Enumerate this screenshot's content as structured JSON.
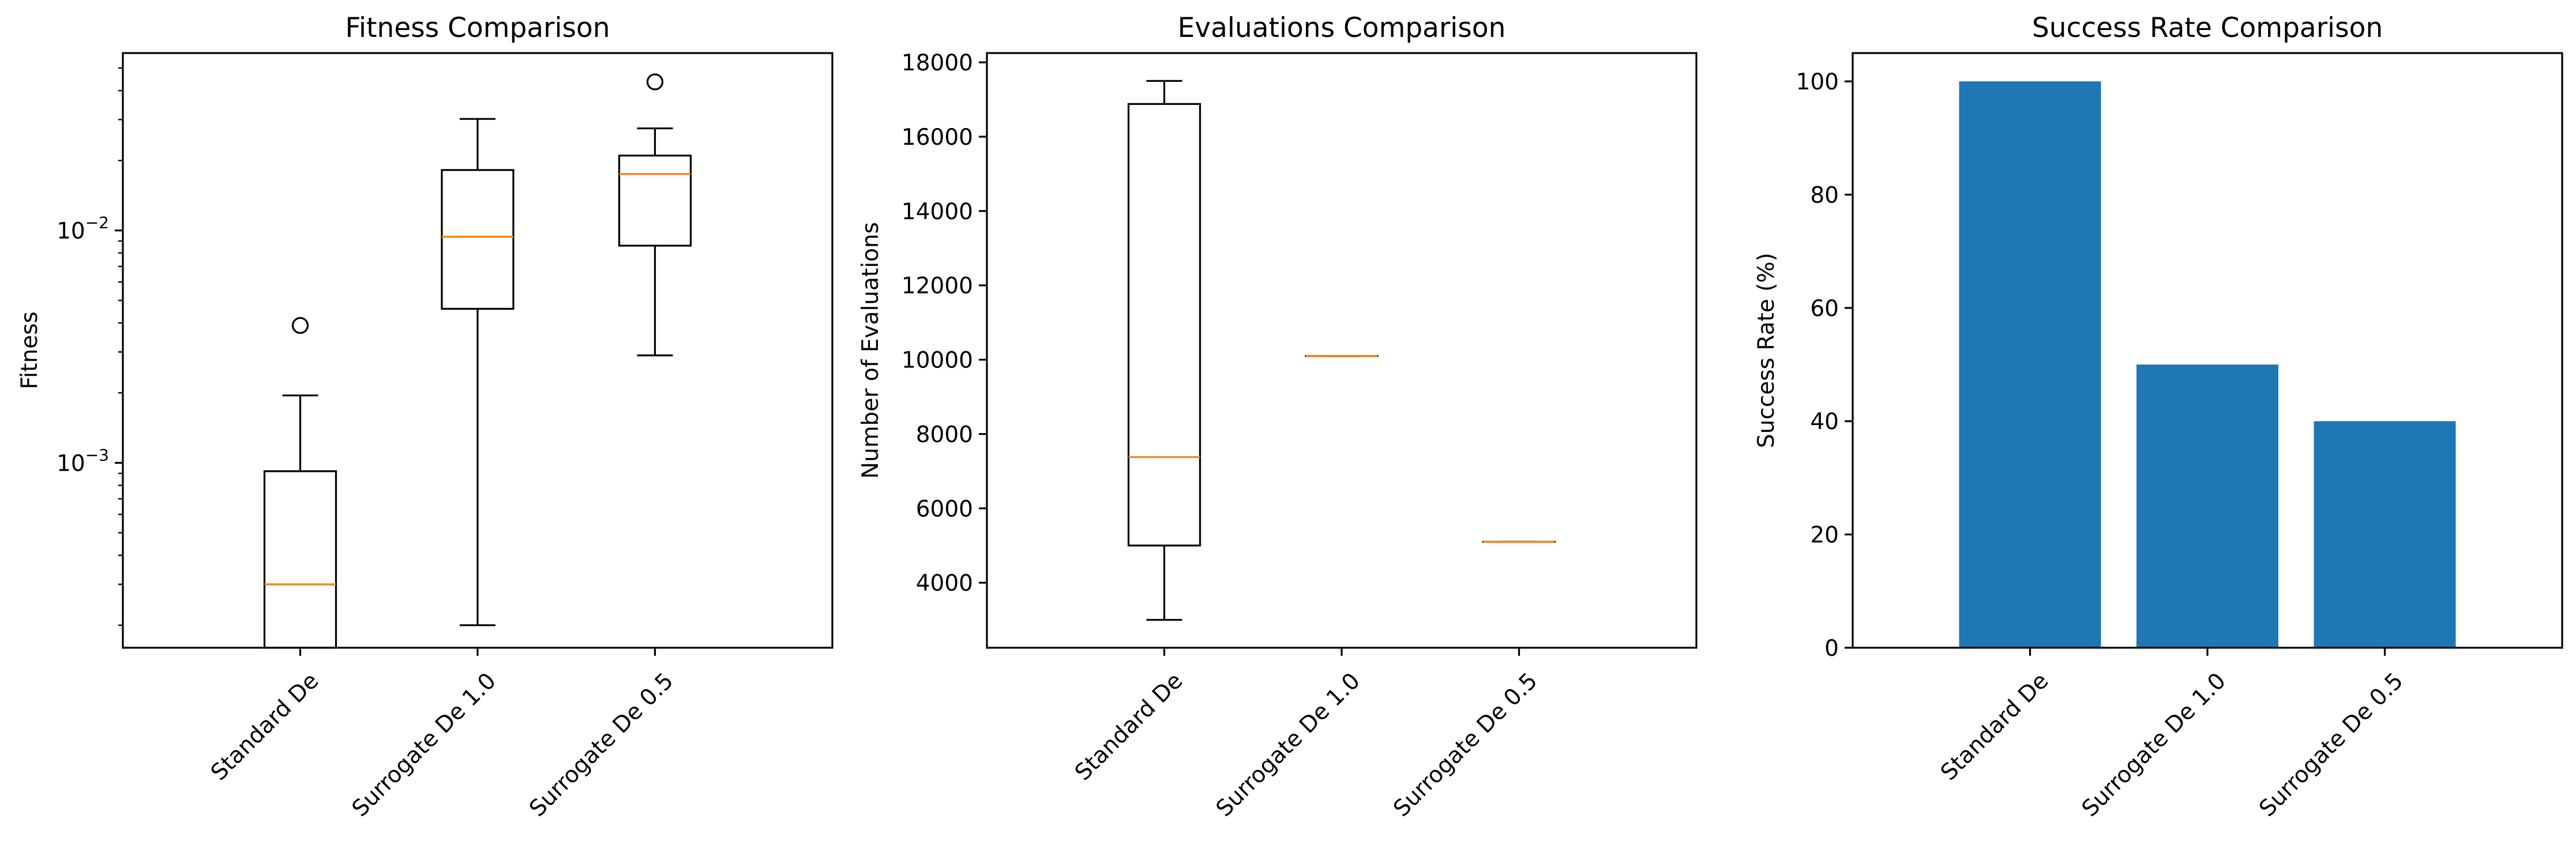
{
  "chart_data": [
    {
      "type": "box",
      "title": "Fitness Comparison",
      "xlabel": "",
      "ylabel": "Fitness",
      "yscale": "log",
      "ylim": [
        0.00016,
        0.058
      ],
      "yticks": [
        {
          "value": 0.001,
          "base": "10",
          "exp": "−3"
        },
        {
          "value": 0.01,
          "base": "10",
          "exp": "−2"
        }
      ],
      "categories": [
        "Standard De",
        "Surrogate De 1.0",
        "Surrogate De 0.5"
      ],
      "boxes": [
        {
          "whisker_low": 0.00012,
          "q1": 0.00012,
          "median": 0.0003,
          "q3": 0.00092,
          "whisker_high": 0.00195,
          "outliers": [
            0.0039
          ]
        },
        {
          "whisker_low": 0.0002,
          "q1": 0.0046,
          "median": 0.0094,
          "q3": 0.0182,
          "whisker_high": 0.0302,
          "outliers": []
        },
        {
          "whisker_low": 0.0029,
          "q1": 0.0086,
          "median": 0.0175,
          "q3": 0.021,
          "whisker_high": 0.0275,
          "outliers": [
            0.0436
          ]
        }
      ],
      "colors": {
        "box": "#000000",
        "median": "#ff7f0e"
      }
    },
    {
      "type": "box",
      "title": "Evaluations Comparison",
      "xlabel": "",
      "ylabel": "Number of Evaluations",
      "yscale": "linear",
      "ylim": [
        2250,
        18250
      ],
      "yticks": [
        4000,
        6000,
        8000,
        10000,
        12000,
        14000,
        16000,
        18000
      ],
      "categories": [
        "Standard De",
        "Surrogate De 1.0",
        "Surrogate De 0.5"
      ],
      "boxes": [
        {
          "whisker_low": 3000,
          "q1": 5000,
          "median": 7380,
          "q3": 16880,
          "whisker_high": 17500,
          "outliers": []
        },
        {
          "whisker_low": 10100,
          "q1": 10100,
          "median": 10100,
          "q3": 10100,
          "whisker_high": 10100,
          "outliers": []
        },
        {
          "whisker_low": 5100,
          "q1": 5100,
          "median": 5100,
          "q3": 5100,
          "whisker_high": 5100,
          "outliers": []
        }
      ],
      "colors": {
        "box": "#000000",
        "median": "#ff7f0e"
      }
    },
    {
      "type": "bar",
      "title": "Success Rate Comparison",
      "xlabel": "",
      "ylabel": "Success Rate (%)",
      "ylim": [
        0,
        105
      ],
      "yticks": [
        0,
        20,
        40,
        60,
        80,
        100
      ],
      "categories": [
        "Standard De",
        "Surrogate De 1.0",
        "Surrogate De 0.5"
      ],
      "values": [
        100,
        50,
        40
      ],
      "colors": {
        "bar": "#1f77b4"
      }
    }
  ]
}
